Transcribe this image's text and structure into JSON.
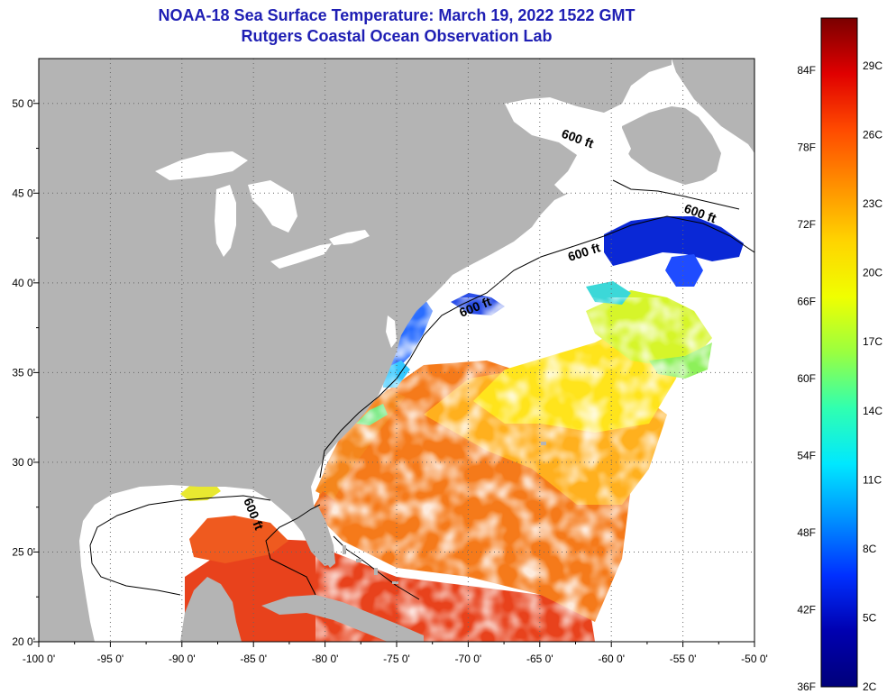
{
  "title": "NOAA-18 Sea Surface Temperature:  March 19, 2022 1522 GMT",
  "subtitle": "Rutgers Coastal Ocean Observation Lab",
  "map": {
    "lon_range": [
      -100,
      -50
    ],
    "lat_range": [
      20,
      52.5
    ],
    "lon_ticks": [
      {
        "value": -100,
        "label": "-100 0'"
      },
      {
        "value": -95,
        "label": "-95 0'"
      },
      {
        "value": -90,
        "label": "-90 0'"
      },
      {
        "value": -85,
        "label": "-85 0'"
      },
      {
        "value": -80,
        "label": "-80 0'"
      },
      {
        "value": -75,
        "label": "-75 0'"
      },
      {
        "value": -70,
        "label": "-70 0'"
      },
      {
        "value": -65,
        "label": "-65 0'"
      },
      {
        "value": -60,
        "label": "-60 0'"
      },
      {
        "value": -55,
        "label": "-55 0'"
      },
      {
        "value": -50,
        "label": "-50 0'"
      }
    ],
    "lat_ticks": [
      {
        "value": 50,
        "label": "50 0'"
      },
      {
        "value": 45,
        "label": "45 0'"
      },
      {
        "value": 40,
        "label": "40 0'"
      },
      {
        "value": 35,
        "label": "35 0'"
      },
      {
        "value": 30,
        "label": "30 0'"
      },
      {
        "value": 25,
        "label": "25 0'"
      },
      {
        "value": 20,
        "label": "20 0'"
      }
    ],
    "contour_labels": [
      "600 ft",
      "600 ft",
      "600 ft",
      "600 ft",
      "600 ft"
    ],
    "colors": {
      "land": "#b4b4b4",
      "no_data": "#ffffff",
      "grid": "#555555"
    }
  },
  "colorbar": {
    "fahrenheit_labels": [
      "84F",
      "78F",
      "72F",
      "66F",
      "60F",
      "54F",
      "48F",
      "42F",
      "36F"
    ],
    "celsius_labels": [
      "29C",
      "26C",
      "23C",
      "20C",
      "17C",
      "14C",
      "11C",
      "8C",
      "5C",
      "2C"
    ],
    "colors_top_to_bottom": [
      "#7a0000",
      "#e00000",
      "#ff4a00",
      "#ff9000",
      "#ffd400",
      "#f0ff00",
      "#9aff40",
      "#30ffb0",
      "#00e8ff",
      "#0090ff",
      "#0030ff",
      "#0000b0",
      "#00007a"
    ]
  }
}
